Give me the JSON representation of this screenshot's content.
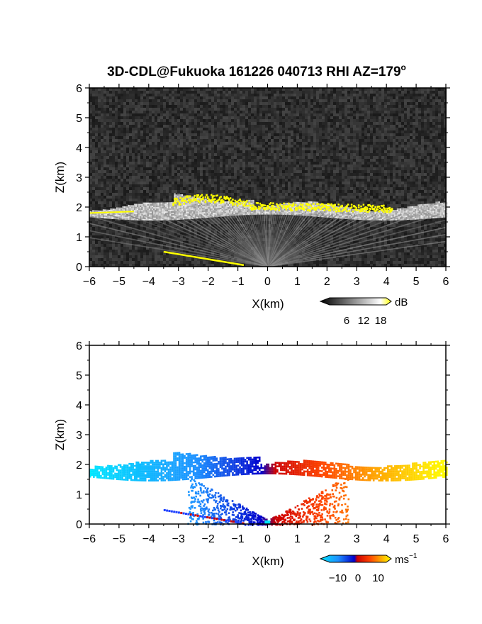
{
  "title": "3D-CDL@Fukuoka 161226 040713 RHI AZ=179",
  "title_superscript": "o",
  "chart_data": [
    {
      "type": "heatmap",
      "quantity": "reflectivity",
      "xlabel": "X(km)",
      "ylabel": "Z(km)",
      "xlim": [
        -6,
        6
      ],
      "ylim": [
        0,
        6
      ],
      "x_ticks": [
        -6,
        -5,
        -4,
        -3,
        -2,
        -1,
        0,
        1,
        2,
        3,
        4,
        5,
        6
      ],
      "y_ticks": [
        0,
        1,
        2,
        3,
        4,
        5,
        6
      ],
      "colorbar": {
        "unit": "dB",
        "ticks": [
          6,
          12,
          18
        ],
        "range": [
          0,
          20
        ],
        "colors": [
          "#000000",
          "#ffffff",
          "#ffff00"
        ]
      },
      "features": {
        "cloud_layer": {
          "x_range": [
            -6,
            6
          ],
          "z_range": [
            1.6,
            2.4
          ]
        },
        "yellow_echo_top": {
          "x_range": [
            -3.2,
            4.2
          ],
          "z_range": [
            1.9,
            2.4
          ]
        },
        "low_line": {
          "x_range": [
            -3.5,
            -0.8
          ],
          "z_range": [
            0.05,
            0.5
          ]
        }
      }
    },
    {
      "type": "heatmap",
      "quantity": "doppler_velocity",
      "xlabel": "X(km)",
      "ylabel": "Z(km)",
      "xlim": [
        -6,
        6
      ],
      "ylim": [
        0,
        6
      ],
      "x_ticks": [
        -6,
        -5,
        -4,
        -3,
        -2,
        -1,
        0,
        1,
        2,
        3,
        4,
        5,
        6
      ],
      "y_ticks": [
        0,
        1,
        2,
        3,
        4,
        5,
        6
      ],
      "colorbar": {
        "unit": "ms",
        "unit_superscript": "−1",
        "ticks": [
          "−10",
          "0",
          "10"
        ],
        "range": [
          -14,
          14
        ],
        "colors": [
          "#00e5ff",
          "#1e90ff",
          "#0000cc",
          "#cc0000",
          "#ff4500",
          "#ffa500",
          "#ffff00"
        ]
      }
    }
  ]
}
